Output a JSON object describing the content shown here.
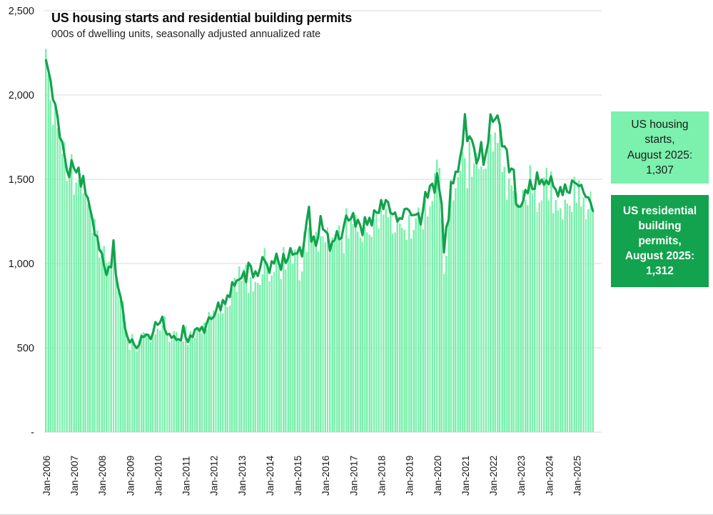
{
  "chart": {
    "title": "US housing starts and residential building permits",
    "subtitle": "000s of dwelling units, seasonally adjusted annualized rate"
  },
  "legend": {
    "starts": {
      "label": "US housing\nstarts,\nAugust 2025:\n1,307",
      "bg": "#7cf0ad"
    },
    "permits": {
      "label": "US residential\nbuilding\npermits,\nAugust 2025:\n1,312",
      "bg": "#13a24d"
    }
  },
  "colors": {
    "bar": "#7cf0ad",
    "line": "#13a24d",
    "grid": "#d9d9d9",
    "axis_text": "#1a1a1a"
  },
  "chart_data": {
    "type": "bar+line",
    "title": "US housing starts and residential building permits",
    "subtitle": "000s of dwelling units, seasonally adjusted annualized rate",
    "x_monthly_range": {
      "start": "Jan-2006",
      "end": "Aug-2025"
    },
    "x_tick_labels": [
      "Jan-2006",
      "Jan-2007",
      "Jan-2008",
      "Jan-2009",
      "Jan-2010",
      "Jan-2011",
      "Jan-2012",
      "Jan-2013",
      "Jan-2014",
      "Jan-2015",
      "Jan-2016",
      "Jan-2017",
      "Jan-2018",
      "Jan-2019",
      "Jan-2020",
      "Jan-2021",
      "Jan-2022",
      "Jan-2023",
      "Jan-2024",
      "Jan-2025"
    ],
    "y_ticks": [
      {
        "label": "2,500",
        "value": 2500
      },
      {
        "label": "2,000",
        "value": 2000
      },
      {
        "label": "1,500",
        "value": 1500
      },
      {
        "label": "1,000",
        "value": 1000
      },
      {
        "label": "500",
        "value": 500
      },
      {
        "label": "-",
        "value": 0
      }
    ],
    "ylim": [
      0,
      2500
    ],
    "grid": "horizontal",
    "legend_position": "right",
    "series": [
      {
        "name": "US housing starts",
        "type": "bar",
        "color": "#7cf0ad",
        "latest_label": "US housing starts, August 2025: 1,307",
        "values": [
          2273,
          2119,
          1969,
          1821,
          1942,
          1802,
          1737,
          1650,
          1720,
          1491,
          1570,
          1649,
          1409,
          1480,
          1495,
          1490,
          1415,
          1448,
          1354,
          1330,
          1183,
          1264,
          1197,
          1037,
          1084,
          1103,
          1005,
          1013,
          973,
          1046,
          923,
          844,
          820,
          777,
          652,
          560,
          490,
          582,
          505,
          478,
          540,
          585,
          594,
          586,
          585,
          534,
          588,
          581,
          614,
          604,
          636,
          687,
          583,
          536,
          546,
          599,
          594,
          543,
          545,
          539,
          630,
          517,
          600,
          554,
          561,
          608,
          623,
          585,
          650,
          610,
          711,
          694,
          723,
          718,
          706,
          747,
          706,
          754,
          741,
          749,
          854,
          915,
          833,
          983,
          898,
          969,
          994,
          826,
          919,
          835,
          891,
          885,
          873,
          936,
          1091,
          1009,
          897,
          928,
          950,
          1063,
          984,
          909,
          1098,
          964,
          1028,
          1080,
          1003,
          1083,
          1080,
          900,
          954,
          1190,
          1067,
          1213,
          1147,
          1136,
          1189,
          1073,
          1163,
          1160,
          1128,
          1213,
          1113,
          1155,
          1128,
          1195,
          1226,
          1164,
          1062,
          1328,
          1149,
          1268,
          1236,
          1288,
          1189,
          1154,
          1129,
          1217,
          1185,
          1172,
          1158,
          1265,
          1303,
          1210,
          1334,
          1290,
          1327,
          1276,
          1329,
          1177,
          1184,
          1279,
          1237,
          1211,
          1202,
          1142,
          1291,
          1149,
          1199,
          1270,
          1332,
          1233,
          1204,
          1377,
          1280,
          1340,
          1371,
          1536,
          1617,
          1567,
          1269,
          938,
          1046,
          1273,
          1497,
          1376,
          1448,
          1514,
          1551,
          1661,
          1625,
          1447,
          1725,
          1514,
          1594,
          1657,
          1562,
          1576,
          1559,
          1563,
          1706,
          1768,
          1666,
          1777,
          1716,
          1803,
          1543,
          1575,
          1377,
          1505,
          1463,
          1432,
          1419,
          1357,
          1340,
          1436,
          1380,
          1348,
          1583,
          1418,
          1451,
          1305,
          1363,
          1376,
          1510,
          1568,
          1376,
          1546,
          1299,
          1377,
          1315,
          1329,
          1262,
          1379,
          1355,
          1344,
          1305,
          1515,
          1361,
          1494,
          1339,
          1392,
          1263,
          1321,
          1428,
          1307
        ]
      },
      {
        "name": "US residential building permits",
        "type": "line",
        "color": "#13a24d",
        "latest_label": "US residential building permits, August 2025: 1,312",
        "values": [
          2207,
          2147,
          2084,
          1973,
          1946,
          1869,
          1746,
          1722,
          1639,
          1553,
          1513,
          1613,
          1566,
          1541,
          1569,
          1457,
          1520,
          1413,
          1389,
          1322,
          1261,
          1170,
          1162,
          1080,
          1061,
          984,
          932,
          982,
          978,
          1138,
          937,
          857,
          805,
          730,
          615,
          564,
          531,
          550,
          516,
          498,
          518,
          570,
          564,
          580,
          575,
          551,
          589,
          653,
          636,
          650,
          685,
          610,
          579,
          583,
          559,
          571,
          547,
          552,
          544,
          631,
          563,
          534,
          574,
          563,
          609,
          617,
          601,
          625,
          589,
          644,
          681,
          671,
          682,
          715,
          769,
          723,
          784,
          760,
          812,
          801,
          890,
          868,
          900,
          905,
          915,
          952,
          890,
          1005,
          985,
          918,
          954,
          926,
          974,
          1039,
          1017,
          991,
          945,
          1014,
          1000,
          1059,
          1005,
          963,
          1057,
          1003,
          1031,
          1092,
          1052,
          1060,
          1060,
          1098,
          1042,
          1140,
          1250,
          1337,
          1130,
          1161,
          1105,
          1161,
          1282,
          1204,
          1193,
          1177,
          1077,
          1130,
          1136,
          1193,
          1144,
          1152,
          1225,
          1285,
          1255,
          1266,
          1300,
          1219,
          1260,
          1228,
          1168,
          1275,
          1230,
          1272,
          1225,
          1316,
          1303,
          1300,
          1377,
          1323,
          1377,
          1364,
          1301,
          1292,
          1303,
          1249,
          1270,
          1265,
          1322,
          1326,
          1316,
          1287,
          1288,
          1290,
          1299,
          1232,
          1317,
          1425,
          1391,
          1461,
          1474,
          1420,
          1536,
          1438,
          1356,
          1066,
          1216,
          1258,
          1483,
          1476,
          1545,
          1544,
          1635,
          1704,
          1886,
          1726,
          1755,
          1733,
          1683,
          1594,
          1630,
          1721,
          1586,
          1653,
          1717,
          1885,
          1841,
          1857,
          1879,
          1823,
          1695,
          1696,
          1674,
          1542,
          1564,
          1555,
          1351,
          1337,
          1339,
          1371,
          1437,
          1417,
          1496,
          1441,
          1443,
          1541,
          1471,
          1498,
          1467,
          1493,
          1470,
          1518,
          1458,
          1440,
          1399,
          1454,
          1406,
          1470,
          1425,
          1419,
          1493,
          1482,
          1473,
          1459,
          1467,
          1422,
          1394,
          1393,
          1362,
          1312
        ]
      }
    ]
  }
}
